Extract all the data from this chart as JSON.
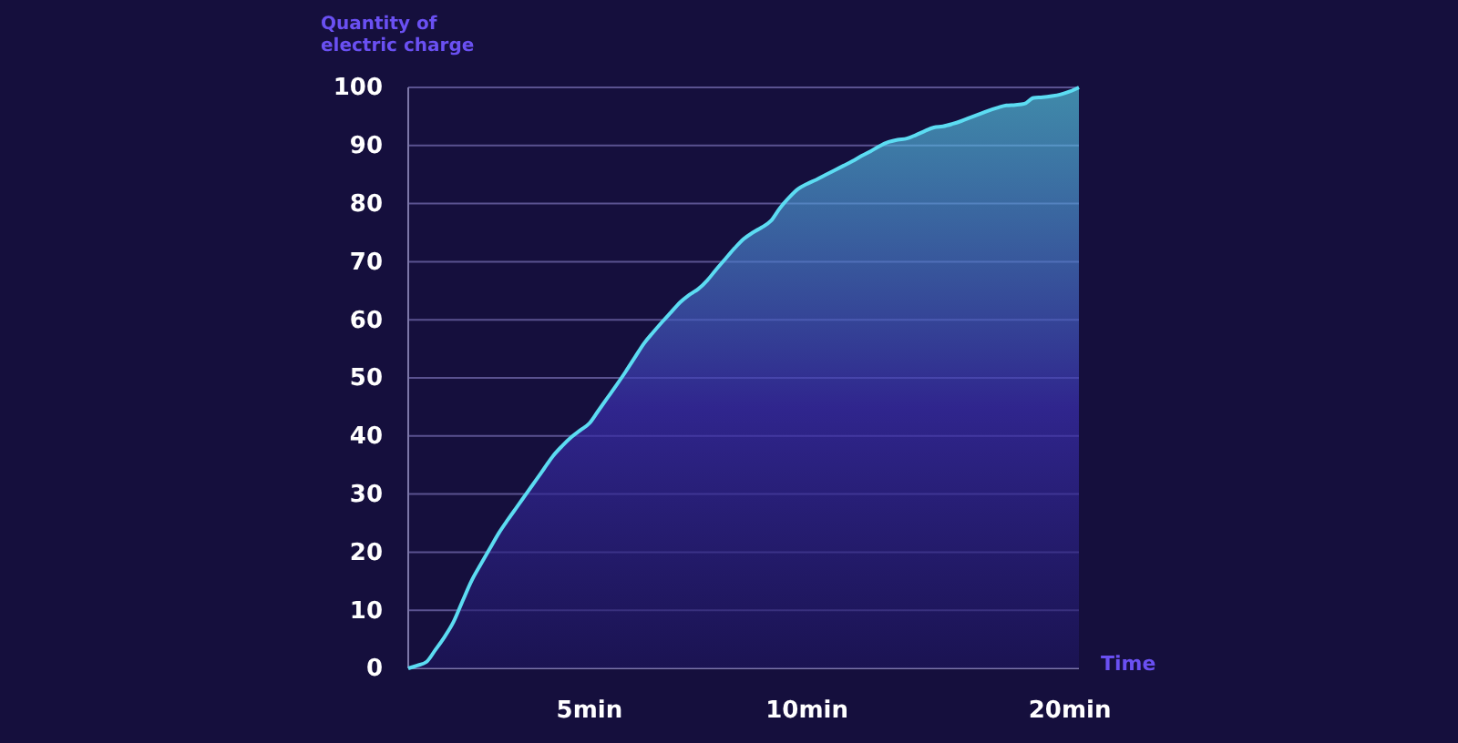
{
  "chart_data": {
    "type": "area",
    "ylabel": "Quantity of electric charge",
    "xlabel": "Time",
    "categories": [
      null,
      null,
      null,
      null,
      null,
      null,
      null,
      null,
      null,
      null,
      null,
      null,
      null,
      null,
      null,
      null,
      null,
      null,
      null,
      null,
      "5min",
      null,
      null,
      null,
      null,
      null,
      null,
      null,
      null,
      null,
      null,
      null,
      null,
      null,
      null,
      null,
      null,
      null,
      null,
      null,
      null,
      null,
      null,
      null,
      "10min",
      null,
      null,
      null,
      null,
      null,
      null,
      null,
      null,
      null,
      null,
      null,
      null,
      null,
      null,
      null,
      null,
      null,
      null,
      null,
      null,
      null,
      null,
      null,
      null,
      null,
      null,
      null,
      null,
      "20min",
      null
    ],
    "series": [
      {
        "color": "#5cdcf2",
        "values": [
          0,
          0.5,
          1.1,
          3.2,
          5.4,
          8.0,
          11.6,
          15.1,
          17.9,
          20.6,
          23.3,
          25.6,
          27.8,
          30.0,
          32.2,
          34.4,
          36.6,
          38.3,
          39.8,
          41.0,
          42.2,
          44.4,
          46.6,
          48.8,
          51.1,
          53.5,
          55.9,
          57.8,
          59.6,
          61.3,
          63.0,
          64.3,
          65.3,
          66.8,
          68.7,
          70.5,
          72.3,
          73.9,
          75.0,
          75.9,
          77.0,
          79.2,
          81.0,
          82.5,
          83.4,
          84.1,
          84.9,
          85.7,
          86.5,
          87.3,
          88.2,
          89.0,
          89.9,
          90.6,
          91.0,
          91.2,
          91.8,
          92.5,
          93.1,
          93.3,
          93.7,
          94.2,
          94.8,
          95.4,
          96.0,
          96.5,
          96.9,
          97.0,
          97.2,
          98.2,
          98.3,
          98.5,
          98.8,
          99.3,
          100
        ]
      }
    ],
    "ylim": [
      0,
      100
    ],
    "yticks": [
      0,
      10,
      20,
      30,
      40,
      50,
      60,
      70,
      80,
      90,
      100
    ],
    "grid": "y"
  }
}
